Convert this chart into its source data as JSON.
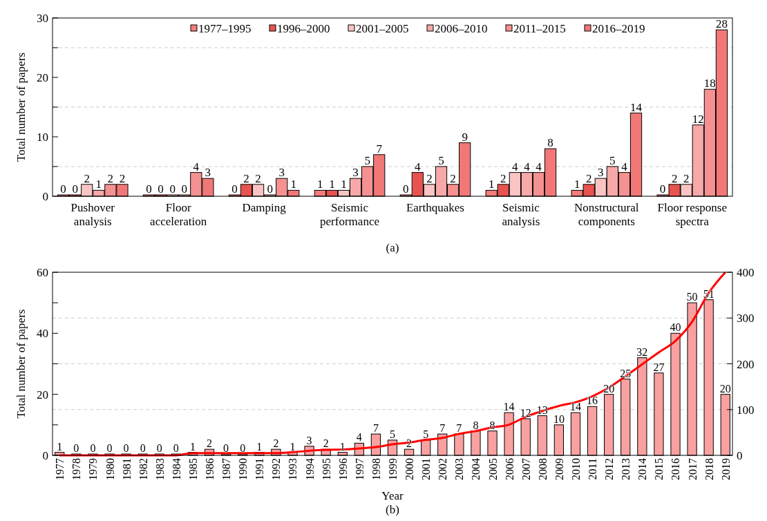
{
  "chart_data": [
    {
      "type": "bar",
      "title": "(a)",
      "ylabel": "Total number of papers",
      "categories": [
        "Pushover analysis",
        "Floor acceleration",
        "Damping",
        "Seismic performance",
        "Earthquakes",
        "Seismic analysis",
        "Nonstructural components",
        "Floor response spectra"
      ],
      "series": [
        {
          "name": "1977–1995",
          "color": "#f47c7c",
          "values": [
            0,
            0,
            0,
            1,
            0,
            1,
            1,
            0
          ]
        },
        {
          "name": "1996–2000",
          "color": "#e8534f",
          "values": [
            0,
            0,
            2,
            1,
            4,
            2,
            2,
            2
          ]
        },
        {
          "name": "2001–2005",
          "color": "#fbc4c4",
          "values": [
            2,
            0,
            2,
            1,
            2,
            4,
            3,
            2
          ]
        },
        {
          "name": "2006–2010",
          "color": "#f7a8a8",
          "values": [
            1,
            0,
            0,
            3,
            5,
            4,
            5,
            12
          ]
        },
        {
          "name": "2011–2015",
          "color": "#f59191",
          "values": [
            2,
            4,
            3,
            5,
            2,
            4,
            4,
            18
          ]
        },
        {
          "name": "2016–2019",
          "color": "#f27878",
          "values": [
            2,
            3,
            1,
            7,
            9,
            8,
            14,
            28
          ]
        }
      ],
      "ylim": [
        0,
        30
      ],
      "yticks": [
        0,
        {
          "value": 5,
          "label": null
        },
        10,
        {
          "value": 15,
          "label": null
        },
        20,
        {
          "value": 25,
          "label": null
        },
        30
      ],
      "grid": "y",
      "legend": "top",
      "data_labels": true
    },
    {
      "type": "bar",
      "title": "(b)",
      "xlabel": "Year",
      "ylabel": "Total number of papers",
      "categories": [
        "1977",
        "1978",
        "1979",
        "1980",
        "1981",
        "1982",
        "1983",
        "1984",
        "1985",
        "1986",
        "1987",
        "1990",
        "1991",
        "1992",
        "1993",
        "1994",
        "1995",
        "1996",
        "1997",
        "1998",
        "1999",
        "2000",
        "2001",
        "2002",
        "2003",
        "2004",
        "2005",
        "2006",
        "2007",
        "2008",
        "2009",
        "2010",
        "2011",
        "2012",
        "2013",
        "2014",
        "2015",
        "2016",
        "2017",
        "2018",
        "2019"
      ],
      "series": [
        {
          "color": "#f9a0a0",
          "values": [
            1,
            0,
            0,
            0,
            0,
            0,
            0,
            0,
            1,
            2,
            0,
            0,
            1,
            2,
            1,
            3,
            2,
            1,
            4,
            7,
            5,
            2,
            5,
            7,
            7,
            8,
            8,
            14,
            12,
            13,
            10,
            14,
            16,
            20,
            25,
            32,
            27,
            40,
            50,
            51,
            20
          ],
          "value_labels": [
            "1",
            "0",
            "0",
            "0",
            "0",
            "0",
            "0",
            "0",
            "1",
            "2",
            "0",
            "0",
            "1",
            "2",
            "1",
            "3",
            "2",
            "1",
            "4",
            "7",
            "5",
            "2",
            "5",
            "7",
            "7",
            "8",
            "8",
            "14",
            "12",
            "13",
            "10",
            "14",
            "16",
            "20",
            "25",
            "32",
            "27",
            "40",
            "50",
            "51",
            "20"
          ]
        },
        {
          "type": "line",
          "axis": "y2",
          "color": "#ff0000",
          "values": [
            0,
            0,
            0,
            0,
            0,
            0,
            0,
            0,
            5,
            5,
            5,
            5,
            5,
            5,
            7,
            10,
            12,
            13,
            15,
            18,
            24,
            28,
            34,
            38,
            47,
            53,
            61,
            67,
            84,
            97,
            108,
            116,
            129,
            148,
            173,
            199,
            225,
            250,
            292,
            355,
            400
          ]
        }
      ],
      "ylim": [
        0,
        60
      ],
      "yticks": [
        0,
        {
          "value": 10,
          "label": null
        },
        20,
        {
          "value": 30,
          "label": null
        },
        40,
        {
          "value": 50,
          "label": null
        },
        60
      ],
      "y2lim": [
        0,
        400
      ],
      "y2ticks": [
        0,
        100,
        200,
        300,
        400
      ],
      "grid": "y2",
      "legend": false
    }
  ]
}
